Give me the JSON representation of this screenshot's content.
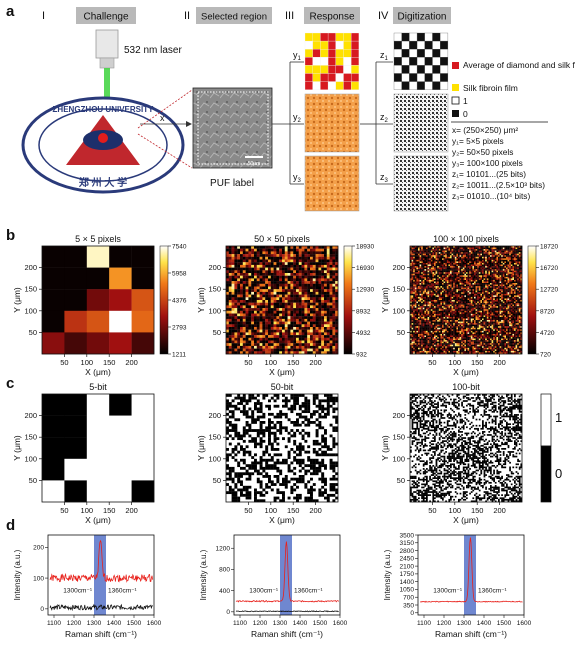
{
  "panel_labels": {
    "a": "a",
    "b": "b",
    "c": "c",
    "d": "d"
  },
  "stages": [
    {
      "roman": "I",
      "title": "Challenge"
    },
    {
      "roman": "II",
      "title": "Selected region"
    },
    {
      "roman": "III",
      "title": "Response"
    },
    {
      "roman": "IV",
      "title": "Digitization"
    }
  ],
  "challenge": {
    "laser_label": "532 nm laser",
    "emblem_top": "ZHENGZHOU UNIVERSITY",
    "emblem_bottom": "郑 州 大 学",
    "x_arrow": "x"
  },
  "selected_region": {
    "puf_label": "PUF label",
    "scale_bar": "50μm"
  },
  "response_labels": {
    "y1": "y",
    "y1_sub": "1",
    "y2": "y",
    "y2_sub": "2",
    "y3": "y",
    "y3_sub": "3"
  },
  "digit_labels": {
    "z1": "z",
    "z1_sub": "1",
    "z2": "z",
    "z2_sub": "2",
    "z3": "z",
    "z3_sub": "3"
  },
  "legend": {
    "red": "Average of diamond and silk fibroin film",
    "yellow": "Silk fibroin film",
    "white": "1",
    "black": "0",
    "red_color": "#d71920",
    "yellow_color": "#ffe100"
  },
  "definitions": [
    "x= (250×250) μm²",
    "y₁= 5×5 pixels",
    "y₂= 50×50 pixels",
    "y₃= 100×100 pixels",
    "z₁= 10101...(25 bits)",
    "z₂= 10011...(2.5×10³ bits)",
    "z₃= 01010...(10⁴ bits)"
  ],
  "chart_data": [
    {
      "type": "heatmap",
      "title": "5 × 5 pixels",
      "xlabel": "X (μm)",
      "ylabel": "Y (μm)",
      "xticks": [
        "50",
        "100",
        "150",
        "200"
      ],
      "yticks": [
        "50",
        "100",
        "150",
        "200"
      ],
      "colorbar_ticks": [
        "7540",
        "5958",
        "4376",
        "2793",
        "1211"
      ],
      "grid_rows": [
        [
          0.02,
          0.02,
          0.95,
          0.02,
          0.02
        ],
        [
          0.02,
          0.02,
          0.02,
          0.7,
          0.02
        ],
        [
          0.02,
          0.02,
          0.25,
          0.35,
          0.55
        ],
        [
          0.02,
          0.45,
          0.55,
          1.0,
          0.6
        ],
        [
          0.3,
          0.15,
          0.25,
          0.35,
          0.15
        ]
      ]
    },
    {
      "type": "heatmap",
      "title": "50 × 50 pixels",
      "xlabel": "X (μm)",
      "ylabel": "Y (μm)",
      "xticks": [
        "50",
        "100",
        "150",
        "200"
      ],
      "yticks": [
        "50",
        "100",
        "150",
        "200"
      ],
      "colorbar_ticks": [
        "18930",
        "16930",
        "12930",
        "8932",
        "4932",
        "932"
      ]
    },
    {
      "type": "heatmap",
      "title": "100 × 100 pixels",
      "xlabel": "X (μm)",
      "ylabel": "Y (μm)",
      "xticks": [
        "50",
        "100",
        "150",
        "200"
      ],
      "yticks": [
        "50",
        "100",
        "150",
        "200"
      ],
      "colorbar_ticks": [
        "18720",
        "16720",
        "12720",
        "8720",
        "4720",
        "720"
      ]
    },
    {
      "type": "heatmap",
      "title": "5-bit",
      "xlabel": "X (μm)",
      "ylabel": "Y (μm)",
      "xticks": [
        "50",
        "100",
        "150",
        "200"
      ],
      "yticks": [
        "50",
        "100",
        "150",
        "200"
      ],
      "grid_rows": [
        [
          0,
          0,
          1,
          0,
          1
        ],
        [
          0,
          0,
          1,
          1,
          1
        ],
        [
          0,
          0,
          1,
          1,
          1
        ],
        [
          0,
          1,
          1,
          1,
          1
        ],
        [
          1,
          0,
          1,
          1,
          0
        ]
      ]
    },
    {
      "type": "heatmap",
      "title": "50-bit",
      "xlabel": "X (μm)",
      "ylabel": "Y (μm)",
      "xticks": [
        "50",
        "100",
        "150",
        "200"
      ],
      "yticks": [
        "50",
        "100",
        "150",
        "200"
      ]
    },
    {
      "type": "heatmap",
      "title": "100-bit",
      "xlabel": "X (μm)",
      "ylabel": "Y (μm)",
      "xticks": [
        "50",
        "100",
        "150",
        "200"
      ],
      "yticks": [
        "50",
        "100",
        "150",
        "200"
      ],
      "colorbar_ticks": [
        "1",
        "0"
      ]
    },
    {
      "type": "line",
      "xlabel": "Raman shift (cm⁻¹)",
      "ylabel": "Intensity (a.u.)",
      "xticks": [
        "1100",
        "1200",
        "1300",
        "1400",
        "1500",
        "1600"
      ],
      "yticks": [
        "0",
        "100",
        "200"
      ],
      "xlim": [
        1070,
        1600
      ],
      "ylim": [
        -20,
        240
      ],
      "band": [
        1300,
        1360
      ],
      "band_left": "1300cm⁻¹",
      "band_right": "1360cm⁻¹",
      "series": [
        {
          "color": "#e8211b",
          "baseline": 100,
          "noise": 12,
          "peak": 220
        },
        {
          "color": "#111111",
          "baseline": 5,
          "noise": 8,
          "peak": 5
        }
      ]
    },
    {
      "type": "line",
      "xlabel": "Raman shift (cm⁻¹)",
      "ylabel": "Intensity (a.u.)",
      "xticks": [
        "1100",
        "1200",
        "1300",
        "1400",
        "1500",
        "1600"
      ],
      "yticks": [
        "0",
        "400",
        "800",
        "1200"
      ],
      "xlim": [
        1070,
        1600
      ],
      "ylim": [
        -60,
        1450
      ],
      "band": [
        1300,
        1360
      ],
      "band_left": "1300cm⁻¹",
      "band_right": "1360cm⁻¹",
      "series": [
        {
          "color": "#e8211b",
          "baseline": 200,
          "noise": 12,
          "peak": 1330
        },
        {
          "color": "#111111",
          "baseline": 10,
          "noise": 8,
          "peak": 10
        }
      ]
    },
    {
      "type": "line",
      "xlabel": "Raman shift (cm⁻¹)",
      "ylabel": "Intensity (a.u.)",
      "xticks": [
        "1100",
        "1200",
        "1300",
        "1400",
        "1500",
        "1600"
      ],
      "yticks": [
        "0",
        "350",
        "700",
        "1050",
        "1400",
        "1750",
        "2100",
        "2450",
        "2800",
        "3150",
        "3500"
      ],
      "xlim": [
        1070,
        1600
      ],
      "ylim": [
        -100,
        3500
      ],
      "band": [
        1300,
        1360
      ],
      "band_left": "1300cm⁻¹",
      "band_right": "1360cm⁻¹",
      "series": [
        {
          "color": "#e8211b",
          "baseline": 500,
          "noise": 20,
          "peak": 3400
        },
        {
          "color": "#111111",
          "baseline": 0,
          "noise": 0,
          "peak": 0
        }
      ]
    }
  ]
}
